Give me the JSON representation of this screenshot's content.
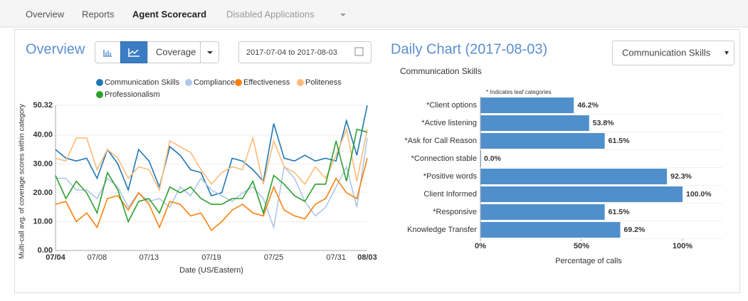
{
  "nav": {
    "items": [
      "Overview",
      "Reports",
      "Agent Scorecard",
      "Disabled Applications"
    ]
  },
  "overview": {
    "title": "Overview",
    "metric": "Coverage",
    "date_range": "2017-07-04 to 2017-08-03"
  },
  "daily": {
    "category_select": "Communication Skills"
  },
  "chart_data": [
    {
      "type": "line",
      "ylabel": "Multi-call avg. of coverage scores within category",
      "xlabel": "Date (US/Eastern)",
      "categories": [
        "07/04",
        null,
        null,
        null,
        "07/08",
        null,
        null,
        null,
        null,
        "07/13",
        null,
        null,
        null,
        null,
        null,
        "07/19",
        null,
        null,
        null,
        null,
        null,
        "07/25",
        null,
        null,
        null,
        null,
        null,
        "07/31",
        null,
        null,
        "08/03"
      ],
      "ylim": [
        0,
        50.32
      ],
      "yticks": [
        {
          "value": 0,
          "label": "0.00"
        },
        {
          "value": 10,
          "label": "10.00"
        },
        {
          "value": 20,
          "label": "20.00"
        },
        {
          "value": 30,
          "label": "30.00"
        },
        {
          "value": 40,
          "label": "40.00"
        },
        {
          "value": 50.32,
          "label": "50.32"
        }
      ],
      "grid": true,
      "series": [
        {
          "name": "Communication Skills",
          "color": "#1f77b4",
          "values": [
            35,
            32,
            31,
            32,
            25,
            35,
            30,
            21,
            35,
            31,
            22,
            36,
            33,
            28,
            27,
            19,
            20,
            32,
            31,
            28,
            24,
            44,
            32,
            31,
            33,
            31,
            32,
            31,
            45,
            33,
            50.32
          ]
        },
        {
          "name": "Compliance",
          "color": "#aec7e8",
          "values": [
            25,
            25,
            21,
            21,
            18,
            25,
            22,
            15,
            20,
            17,
            18,
            15,
            22,
            19,
            25,
            21,
            19,
            17,
            20,
            22,
            18,
            8,
            29,
            25,
            17,
            12,
            15,
            22,
            29,
            15,
            39
          ]
        },
        {
          "name": "Effectiveness",
          "color": "#ff7f0e",
          "values": [
            16,
            17,
            10,
            13,
            8,
            18,
            19,
            14,
            20,
            16,
            8,
            17,
            16,
            12,
            13,
            7,
            10,
            14,
            16,
            13,
            12,
            22,
            14,
            12,
            11,
            16,
            18,
            25,
            20,
            18,
            32
          ]
        },
        {
          "name": "Politeness",
          "color": "#ffbb78",
          "values": [
            32,
            31,
            39,
            39,
            28,
            35,
            32,
            25,
            29,
            28,
            21,
            38,
            36,
            34,
            28,
            23,
            27,
            29,
            28,
            39,
            23,
            38,
            29,
            27,
            23,
            29,
            25,
            33,
            42,
            24,
            42
          ]
        },
        {
          "name": "Professionalism",
          "color": "#2ca02c",
          "values": [
            26,
            18,
            24,
            20,
            13,
            27,
            21,
            10,
            17,
            18,
            13,
            22,
            20,
            22,
            18,
            16,
            16,
            18,
            18,
            24,
            13,
            26,
            23,
            19,
            17,
            23,
            23,
            38,
            24,
            42,
            41
          ]
        }
      ]
    },
    {
      "type": "hbar",
      "title": "Daily Chart (2017-08-03)",
      "subtitle": "Communication Skills",
      "annotation": "* Indicates leaf categories",
      "xlabel": "Percentage of calls",
      "categories": [
        "*Client options",
        "*Active listening",
        "*Ask for Call Reason",
        "*Connection stable",
        "*Positive words",
        "Client Informed",
        "*Responsive",
        "Knowledge Transfer"
      ],
      "values": [
        46.2,
        53.8,
        61.5,
        0.0,
        92.3,
        100.0,
        61.5,
        69.2
      ],
      "value_labels": [
        "46.2%",
        "53.8%",
        "61.5%",
        "0.0%",
        "92.3%",
        "100.0%",
        "61.5%",
        "69.2%"
      ],
      "color": "#4f90cc",
      "xlim": [
        0,
        100
      ],
      "xticks": [
        {
          "value": 0,
          "label": "0%"
        },
        {
          "value": 50,
          "label": "50%"
        },
        {
          "value": 100,
          "label": "100%"
        }
      ]
    }
  ]
}
